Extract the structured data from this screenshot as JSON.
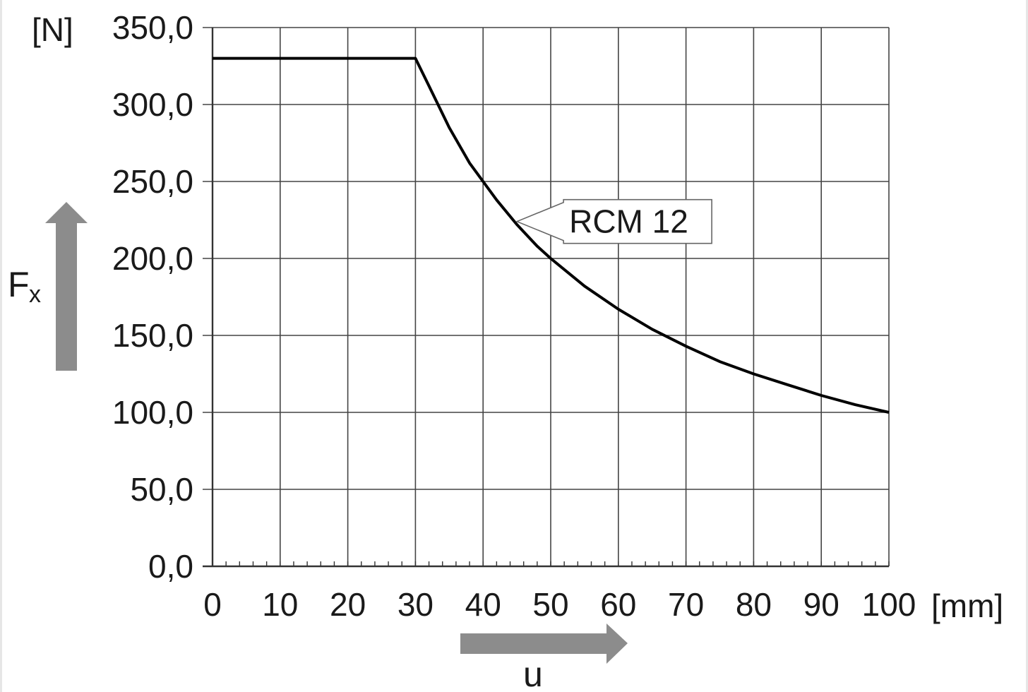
{
  "chart_data": {
    "type": "line",
    "title": "",
    "xlabel": "u",
    "xunit": "[mm]",
    "ylabel": "F",
    "ylabel_subscript": "x",
    "yunit": "[N]",
    "xlim": [
      0,
      100
    ],
    "ylim": [
      0,
      350
    ],
    "x_ticks": [
      "0",
      "10",
      "20",
      "30",
      "40",
      "50",
      "60",
      "70",
      "80",
      "90",
      "100"
    ],
    "y_ticks": [
      "0,0",
      "50,0",
      "100,0",
      "150,0",
      "200,0",
      "250,0",
      "300,0",
      "350,0"
    ],
    "grid": true,
    "legend": "none",
    "series": [
      {
        "name": "RCM 12",
        "x": [
          0,
          30,
          32,
          35,
          38,
          40,
          42,
          45,
          48,
          50,
          55,
          60,
          65,
          70,
          75,
          80,
          85,
          90,
          95,
          100
        ],
        "y": [
          330,
          330,
          312,
          285,
          262,
          250,
          238,
          222,
          208,
          200,
          182,
          167,
          154,
          143,
          133,
          125,
          118,
          111,
          105,
          100
        ]
      }
    ],
    "annotations": [
      {
        "text": "RCM 12",
        "x": 45,
        "y": 224
      }
    ],
    "colors": {
      "line": "#000000",
      "grid": "#444444",
      "arrow": "#8c8c8c"
    }
  }
}
